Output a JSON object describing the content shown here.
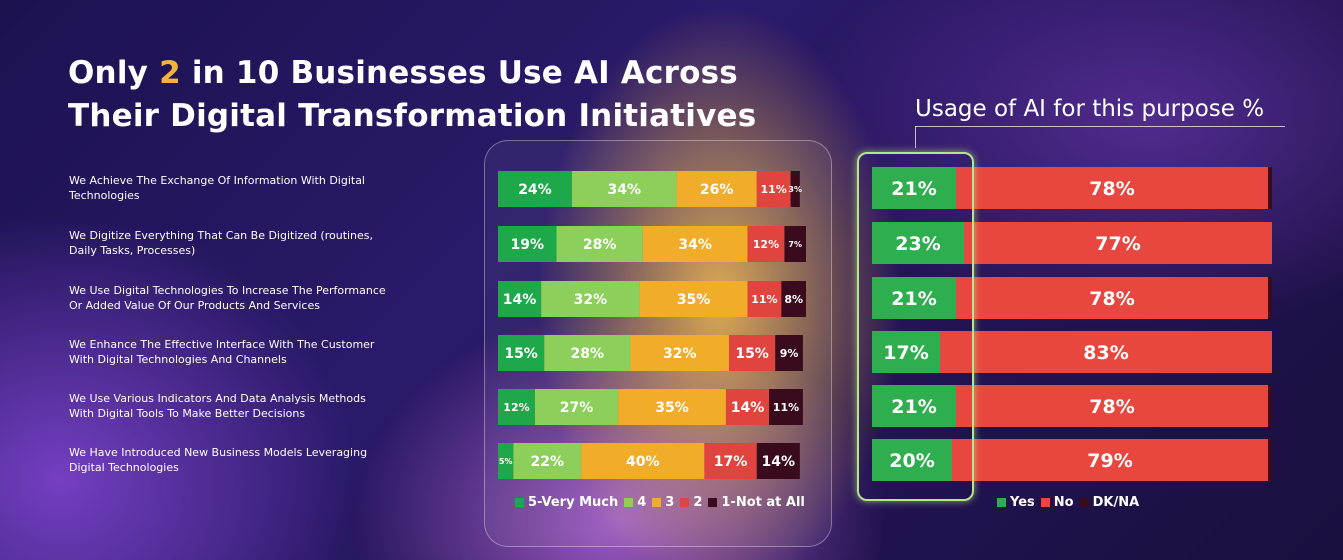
{
  "title": {
    "line1_prefix": "Only",
    "line1_highlight": "2",
    "line1_suffix": "in 10 Businesses Use AI Across",
    "line2": "Their Digital Transformation Initiatives"
  },
  "usage_title": "Usage of AI for this purpose %",
  "colors": {
    "very_much": "#1fa84a",
    "four": "#8ccf5a",
    "three": "#f1ad2a",
    "two": "#e0443f",
    "not_at_all": "#3a0b1c",
    "yes": "#2fae4f",
    "no": "#e8473f",
    "dk": "#3a0b1c"
  },
  "chart_data": [
    {
      "type": "bar",
      "orientation": "horizontal",
      "stacked": true,
      "categories": [
        "We Achieve The Exchange Of Information With Digital Technologies",
        "We Digitize Everything That Can Be Digitized (routines, Daily Tasks, Processes)",
        "We Use Digital Technologies To Increase The Performance Or Added Value Of Our Products And Services",
        "We Enhance The Effective Interface With The Customer With Digital Technologies And Channels",
        "We Use Various  Indicators And Data Analysis Methods With Digital Tools To Make Better Decisions",
        "We Have  Introduced New Business Models Leveraging Digital Technologies"
      ],
      "category_lines": [
        [
          "We Achieve The Exchange Of Information With Digital",
          "Technologies"
        ],
        [
          "We Digitize Everything That Can Be Digitized (routines,",
          "Daily Tasks, Processes)"
        ],
        [
          "We Use Digital Technologies To Increase The Performance",
          "Or Added Value Of Our Products And Services"
        ],
        [
          "We Enhance The Effective Interface With The Customer",
          "With Digital Technologies And Channels"
        ],
        [
          "We Use Various  Indicators And Data Analysis Methods",
          "With Digital Tools To Make Better Decisions"
        ],
        [
          "We Have  Introduced New Business Models Leveraging",
          "Digital Technologies"
        ]
      ],
      "series": [
        {
          "name": "5-Very Much",
          "legend": "5-Very Much",
          "color_key": "very_much",
          "values": [
            24,
            19,
            14,
            15,
            12,
            5
          ],
          "labels": [
            "24%",
            "19%",
            "14%",
            "15%",
            "12%",
            "5%"
          ]
        },
        {
          "name": "4",
          "legend": "4",
          "color_key": "four",
          "values": [
            34,
            28,
            32,
            28,
            27,
            22
          ],
          "labels": [
            "34%",
            "28%",
            "32%",
            "28%",
            "27%",
            "22%"
          ]
        },
        {
          "name": "3",
          "legend": "3",
          "color_key": "three",
          "values": [
            26,
            34,
            35,
            32,
            35,
            40
          ],
          "labels": [
            "26%",
            "34%",
            "35%",
            "32%",
            "35%",
            "40%"
          ]
        },
        {
          "name": "2",
          "legend": "2",
          "color_key": "two",
          "values": [
            11,
            12,
            11,
            15,
            14,
            17
          ],
          "labels": [
            "11%",
            "12%",
            "11%",
            "15%",
            "14%",
            "17%"
          ]
        },
        {
          "name": "1-Not at All",
          "legend": "1-Not at All",
          "color_key": "not_at_all",
          "values": [
            3,
            7,
            8,
            9,
            11,
            14
          ],
          "labels": [
            "3%",
            "7%",
            "8%",
            "9%",
            "11%",
            "14%"
          ]
        }
      ],
      "xlim": [
        0,
        100
      ]
    },
    {
      "type": "bar",
      "orientation": "horizontal",
      "stacked": true,
      "title": "Usage of AI for this purpose %",
      "categories": [
        "We Achieve The Exchange Of Information With Digital Technologies",
        "We Digitize Everything That Can Be Digitized (routines, Daily Tasks, Processes)",
        "We Use Digital Technologies To Increase The Performance Or Added Value Of Our Products And Services",
        "We Enhance The Effective Interface With The Customer With Digital Technologies And Channels",
        "We Use Various  Indicators And Data Analysis Methods With Digital Tools To Make Better Decisions",
        "We Have  Introduced New Business Models Leveraging Digital Technologies"
      ],
      "series": [
        {
          "name": "Yes",
          "legend": "Yes",
          "color_key": "yes",
          "values": [
            21,
            23,
            21,
            17,
            21,
            20
          ],
          "labels": [
            "21%",
            "23%",
            "21%",
            "17%",
            "21%",
            "20%"
          ]
        },
        {
          "name": "No",
          "legend": "No",
          "color_key": "no",
          "values": [
            78,
            77,
            78,
            83,
            78,
            79
          ],
          "labels": [
            "78%",
            "77%",
            "78%",
            "83%",
            "78%",
            "79%"
          ]
        },
        {
          "name": "DK/NA",
          "legend": "DK/NA",
          "color_key": "dk",
          "values": [
            1,
            0,
            1,
            0,
            1,
            1
          ]
        }
      ],
      "xlim": [
        0,
        100
      ]
    }
  ]
}
